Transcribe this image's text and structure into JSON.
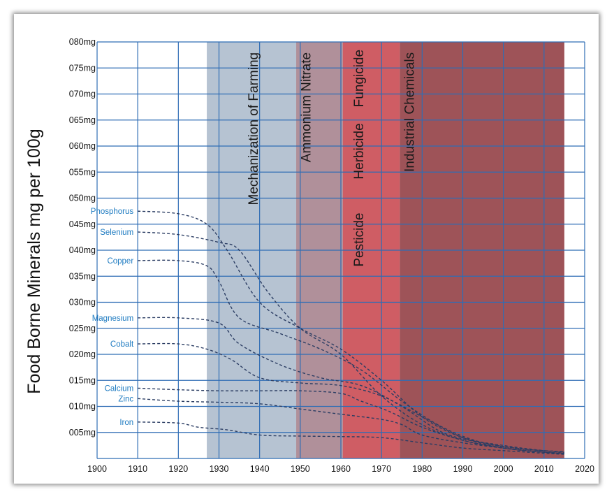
{
  "chart_data": {
    "type": "line",
    "ylabel": "Food Borne Minerals mg per 100g",
    "xlabel": "",
    "title": "",
    "xlim": [
      1900,
      2020
    ],
    "ylim": [
      0,
      80
    ],
    "x_ticks": [
      1900,
      1910,
      1920,
      1930,
      1940,
      1950,
      1960,
      1970,
      1980,
      1990,
      2000,
      2010,
      2020
    ],
    "y_ticks": [
      {
        "v": 5,
        "label": "005mg"
      },
      {
        "v": 10,
        "label": "010mg"
      },
      {
        "v": 15,
        "label": "015mg"
      },
      {
        "v": 20,
        "label": "020mg"
      },
      {
        "v": 25,
        "label": "025mg"
      },
      {
        "v": 30,
        "label": "030mg"
      },
      {
        "v": 35,
        "label": "035mg"
      },
      {
        "v": 40,
        "label": "040mg"
      },
      {
        "v": 45,
        "label": "045mg"
      },
      {
        "v": 50,
        "label": "050mg"
      },
      {
        "v": 55,
        "label": "055mg"
      },
      {
        "v": 60,
        "label": "060mg"
      },
      {
        "v": 65,
        "label": "065mg"
      },
      {
        "v": 70,
        "label": "070mg"
      },
      {
        "v": 75,
        "label": "075mg"
      },
      {
        "v": 80,
        "label": "080mg"
      }
    ],
    "grid": true,
    "bands": [
      {
        "label": "Mechanization of Farming",
        "x0": 1927,
        "x1": 1949,
        "color": "#b6c3d2"
      },
      {
        "label": "Ammonium Nitrate",
        "x0": 1949,
        "x1": 1960.5,
        "color": "#b0909a"
      },
      {
        "label": "Pesticide  Herbicide  Fungicide",
        "x0": 1960.5,
        "x1": 1974.5,
        "color": "#cf5d64"
      },
      {
        "label": "Industrial Chemicals",
        "x0": 1974.5,
        "x1": 2015,
        "color": "#9e5358"
      }
    ],
    "series": [
      {
        "name": "Phosphorus",
        "x": [
          1910,
          1920,
          1927,
          1932,
          1940,
          1950,
          1960,
          1970,
          1980,
          1990,
          2000,
          2010,
          2015
        ],
        "y": [
          47.5,
          47,
          45,
          40,
          30,
          25,
          21,
          15,
          8,
          4,
          2.5,
          1.5,
          1.2
        ]
      },
      {
        "name": "Selenium",
        "x": [
          1910,
          1920,
          1930,
          1935,
          1942,
          1950,
          1960,
          1970,
          1980,
          1990,
          2000,
          2010,
          2015
        ],
        "y": [
          43.5,
          43,
          41.5,
          40,
          32,
          25,
          20,
          12,
          6.5,
          3.5,
          2,
          1.2,
          1
        ]
      },
      {
        "name": "Copper",
        "x": [
          1910,
          1920,
          1927,
          1930,
          1935,
          1945,
          1955,
          1965,
          1975,
          1985,
          1995,
          2005,
          2015
        ],
        "y": [
          38,
          38,
          37,
          34,
          27,
          24,
          21,
          17,
          11,
          6,
          3,
          1.8,
          1.2
        ]
      },
      {
        "name": "Magnesium",
        "x": [
          1910,
          1920,
          1930,
          1935,
          1945,
          1955,
          1965,
          1975,
          1985,
          1995,
          2005,
          2015
        ],
        "y": [
          27,
          27,
          26,
          22,
          18,
          15.5,
          14,
          10,
          5,
          3,
          1.8,
          1.3
        ]
      },
      {
        "name": "Cobalt",
        "x": [
          1910,
          1920,
          1927,
          1933,
          1940,
          1950,
          1960,
          1970,
          1980,
          1990,
          2000,
          2010,
          2015
        ],
        "y": [
          22,
          22,
          21,
          19,
          15.5,
          14.5,
          14,
          12,
          8,
          4,
          2,
          1.2,
          1
        ]
      },
      {
        "name": "Calcium",
        "x": [
          1910,
          1920,
          1930,
          1940,
          1950,
          1960,
          1965,
          1972,
          1980,
          1990,
          2000,
          2010,
          2015
        ],
        "y": [
          13.5,
          13.2,
          13,
          13,
          13,
          12.5,
          11,
          9,
          6,
          3.5,
          2,
          1.2,
          1
        ]
      },
      {
        "name": "Zinc",
        "x": [
          1910,
          1920,
          1930,
          1940,
          1950,
          1960,
          1970,
          1975,
          1980,
          1990,
          2000,
          2010,
          2015
        ],
        "y": [
          11.5,
          11,
          10.8,
          10.5,
          9.5,
          8.5,
          7.5,
          6.5,
          4.5,
          3,
          2,
          1.2,
          1
        ]
      },
      {
        "name": "Iron",
        "x": [
          1910,
          1920,
          1925,
          1932,
          1940,
          1950,
          1960,
          1970,
          1980,
          1990,
          2000,
          2010,
          2015
        ],
        "y": [
          7,
          6.8,
          6,
          5.5,
          4.5,
          4.3,
          4.2,
          4,
          3,
          2,
          1.5,
          1,
          0.8
        ]
      }
    ]
  }
}
